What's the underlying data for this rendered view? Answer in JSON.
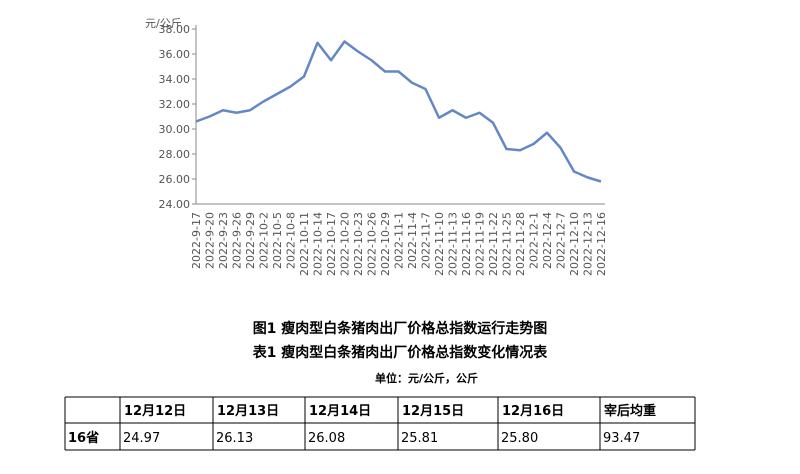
{
  "chart_data": {
    "type": "line",
    "y_label": "元/公斤",
    "categories": [
      "2022-9-17",
      "2022-9-20",
      "2022-9-23",
      "2022-9-26",
      "2022-9-29",
      "2022-10-2",
      "2022-10-5",
      "2022-10-8",
      "2022-10-11",
      "2022-10-14",
      "2022-10-17",
      "2022-10-20",
      "2022-10-23",
      "2022-10-26",
      "2022-10-29",
      "2022-11-1",
      "2022-11-4",
      "2022-11-7",
      "2022-11-10",
      "2022-11-13",
      "2022-11-16",
      "2022-11-19",
      "2022-11-22",
      "2022-11-25",
      "2022-11-28",
      "2022-12-1",
      "2022-12-4",
      "2022-12-7",
      "2022-12-10",
      "2022-12-13",
      "2022-12-16"
    ],
    "values": [
      30.6,
      31.0,
      31.5,
      31.3,
      31.5,
      32.2,
      32.8,
      33.4,
      34.2,
      36.9,
      35.5,
      37.0,
      36.2,
      35.5,
      34.6,
      34.6,
      33.7,
      33.2,
      30.9,
      31.5,
      30.9,
      31.3,
      30.5,
      28.4,
      28.3,
      28.8,
      29.7,
      28.5,
      26.6,
      26.13,
      25.8
    ],
    "color": "#6488c6",
    "ylim": [
      24,
      38
    ],
    "yticks": [
      {
        "value": 24,
        "label": "24.00"
      },
      {
        "value": 26,
        "label": "26.00"
      },
      {
        "value": 28,
        "label": "28.00"
      },
      {
        "value": 30,
        "label": "30.00"
      },
      {
        "value": 32,
        "label": "32.00"
      },
      {
        "value": 34,
        "label": "34.00"
      },
      {
        "value": 36,
        "label": "36.00"
      },
      {
        "value": 38,
        "label": "38.00"
      }
    ]
  },
  "captions": {
    "figure": "图1 瘦肉型白条猪肉出厂价格总指数运行走势图",
    "table": "表1 瘦肉型白条猪肉出厂价格总指数变化情况表",
    "unit": "单位：元/公斤，公斤"
  },
  "table": {
    "header": [
      "12月12日",
      "12月13日",
      "12月14日",
      "12月15日",
      "12月16日",
      "宰后均重"
    ],
    "rows": [
      [
        "16省",
        "24.97",
        "26.13",
        "26.08",
        "25.81",
        "25.80",
        "93.47"
      ]
    ]
  }
}
